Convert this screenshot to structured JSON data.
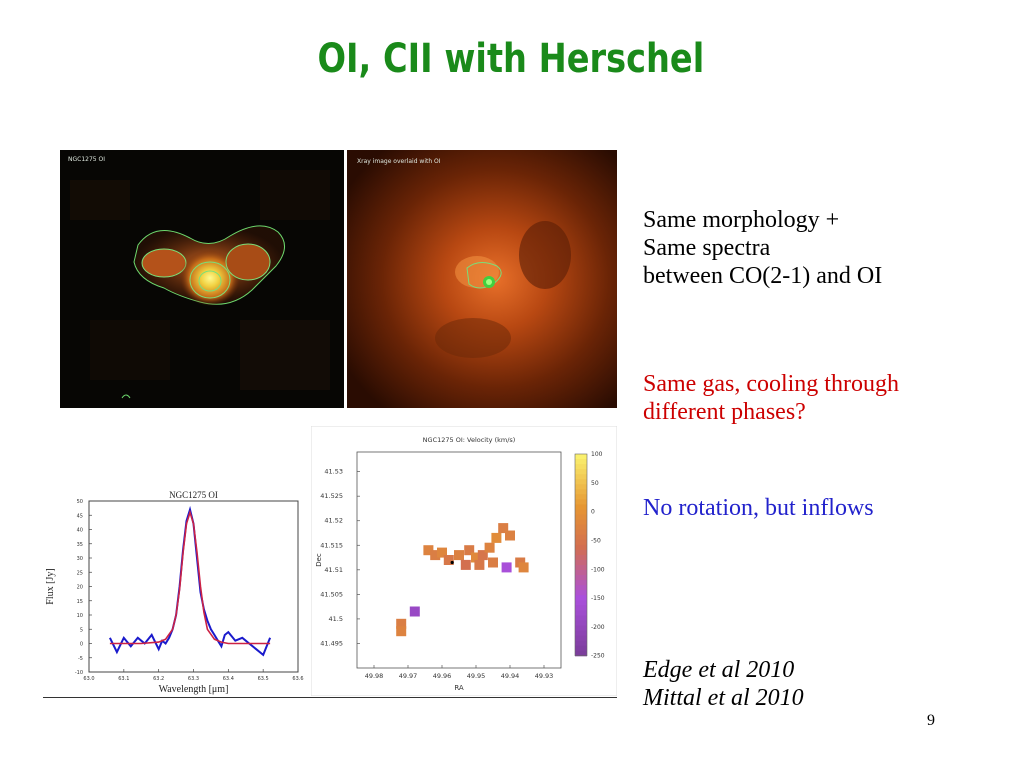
{
  "slide": {
    "title": "OI, CII with Herschel",
    "page_number": "9"
  },
  "images": {
    "oi_map_label": "NGC1275 OI",
    "xray_overlay_label": "Xray image overlaid with OI"
  },
  "text": {
    "line1": "Same morphology +",
    "line2": "Same spectra",
    "line3": "between CO(2-1) and OI",
    "red_line1": "Same gas, cooling through",
    "red_line2": "different phases?",
    "blue_line": "No rotation, but inflows",
    "ref1": "Edge et al 2010",
    "ref2": "Mittal et al 2010"
  },
  "colors": {
    "title": "#1a8a1a",
    "red_text": "#cc0000",
    "blue_text": "#2222cc",
    "spectrum_obs": "#1a1acc",
    "spectrum_fit": "#cc2244"
  },
  "chart_data": [
    {
      "type": "line",
      "title": "NGC1275 OI",
      "xlabel": "Wavelength [μm]",
      "ylabel": "Flux [Jy]",
      "x_ticks": [
        "63.0",
        "63.1",
        "63.2",
        "63.3",
        "63.4",
        "63.5",
        "63.6"
      ],
      "y_ticks": [
        "50",
        "45",
        "40",
        "35",
        "30",
        "25",
        "20",
        "15",
        "10",
        "5",
        "0",
        "-5",
        "-10"
      ],
      "xlim": [
        63.0,
        63.6
      ],
      "ylim": [
        -10,
        50
      ],
      "series": [
        {
          "x": [
            63.06,
            63.08,
            63.1,
            63.12,
            63.14,
            63.16,
            63.18,
            63.2,
            63.21,
            63.22,
            63.23,
            63.24,
            63.25,
            63.26,
            63.27,
            63.28,
            63.29,
            63.3,
            63.31,
            63.32,
            63.33,
            63.34,
            63.35,
            63.36,
            63.37,
            63.38,
            63.39,
            63.4,
            63.42,
            63.44,
            63.46,
            63.48,
            63.5,
            63.52
          ],
          "y": [
            2,
            -3,
            2,
            -1,
            2,
            0,
            3,
            -2,
            1,
            0,
            2,
            5,
            10,
            20,
            33,
            43,
            47,
            42,
            30,
            18,
            12,
            8,
            5,
            3,
            1,
            -1,
            3,
            4,
            1,
            2,
            0,
            -2,
            -4,
            2
          ]
        },
        {
          "x": [
            63.06,
            63.1,
            63.15,
            63.2,
            63.22,
            63.24,
            63.25,
            63.26,
            63.27,
            63.28,
            63.29,
            63.3,
            63.31,
            63.32,
            63.33,
            63.34,
            63.36,
            63.38,
            63.4,
            63.45,
            63.5,
            63.52
          ],
          "y": [
            0,
            0,
            0,
            0.5,
            1.5,
            5,
            10,
            19,
            32,
            42,
            46,
            42,
            32,
            20,
            11,
            5,
            1.5,
            0.5,
            0,
            0,
            0,
            0
          ]
        }
      ]
    },
    {
      "type": "heatmap",
      "title": "NGC1275 OI: Velocity (km/s)",
      "xlabel": "RA",
      "ylabel": "Dec",
      "x_ticks": [
        "49.98",
        "49.97",
        "49.96",
        "49.95",
        "49.94",
        "49.93"
      ],
      "y_ticks": [
        "41.53",
        "41.525",
        "41.52",
        "41.515",
        "41.51",
        "41.505",
        "41.5",
        "41.495"
      ],
      "colorbar_ticks": [
        "100",
        "50",
        "0",
        "-50",
        "-100",
        "-150",
        "-200",
        "-250"
      ],
      "colorbar_range": [
        -250,
        100
      ],
      "cells": [
        {
          "ra": 49.964,
          "dec": 41.514,
          "v": -20
        },
        {
          "ra": 49.962,
          "dec": 41.513,
          "v": -30
        },
        {
          "ra": 49.96,
          "dec": 41.5135,
          "v": -15
        },
        {
          "ra": 49.958,
          "dec": 41.512,
          "v": -40
        },
        {
          "ra": 49.955,
          "dec": 41.513,
          "v": -25
        },
        {
          "ra": 49.952,
          "dec": 41.514,
          "v": -35
        },
        {
          "ra": 49.95,
          "dec": 41.5125,
          "v": -10
        },
        {
          "ra": 49.948,
          "dec": 41.513,
          "v": -45
        },
        {
          "ra": 49.946,
          "dec": 41.5145,
          "v": -20
        },
        {
          "ra": 49.944,
          "dec": 41.5165,
          "v": -5
        },
        {
          "ra": 49.942,
          "dec": 41.5185,
          "v": -30
        },
        {
          "ra": 49.94,
          "dec": 41.517,
          "v": -25
        },
        {
          "ra": 49.953,
          "dec": 41.511,
          "v": -55
        },
        {
          "ra": 49.949,
          "dec": 41.511,
          "v": -40
        },
        {
          "ra": 49.945,
          "dec": 41.5115,
          "v": -30
        },
        {
          "ra": 49.941,
          "dec": 41.5105,
          "v": -150
        },
        {
          "ra": 49.937,
          "dec": 41.5115,
          "v": -35
        },
        {
          "ra": 49.936,
          "dec": 41.5105,
          "v": -15
        },
        {
          "ra": 49.968,
          "dec": 41.5015,
          "v": -180
        },
        {
          "ra": 49.972,
          "dec": 41.499,
          "v": -30
        },
        {
          "ra": 49.972,
          "dec": 41.4975,
          "v": -20
        }
      ]
    }
  ]
}
